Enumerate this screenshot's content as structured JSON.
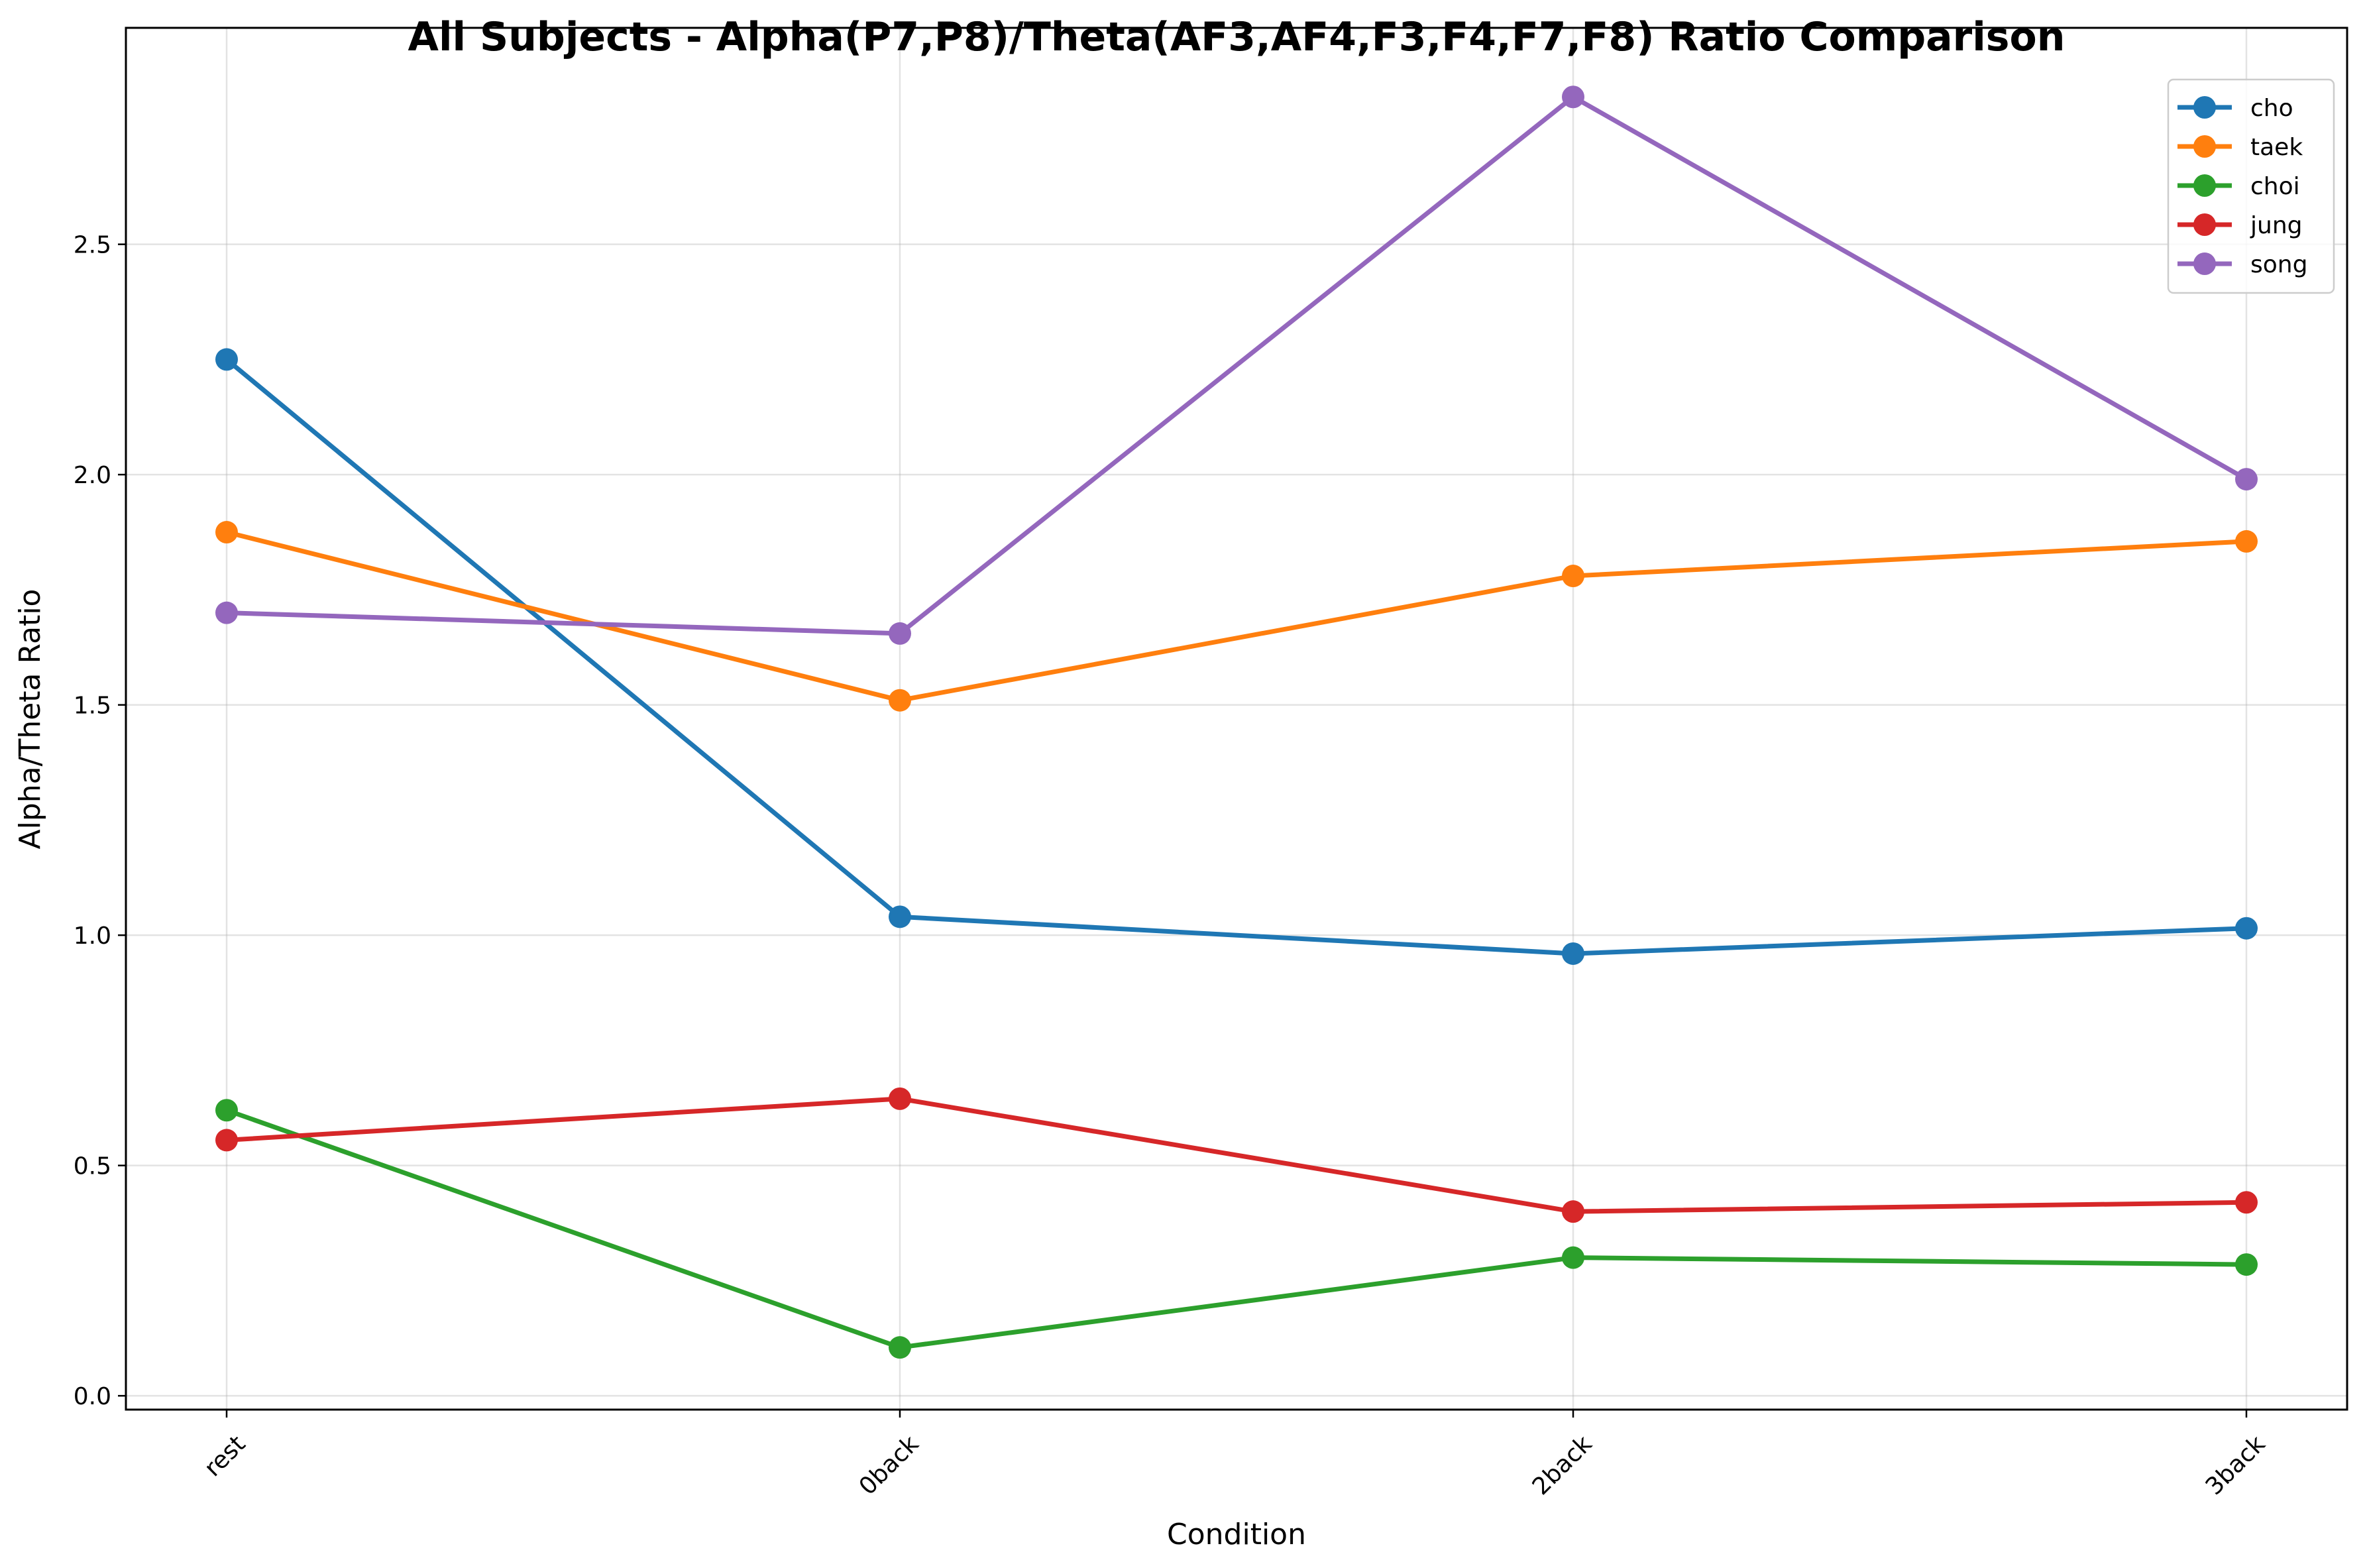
{
  "chart_data": {
    "type": "line",
    "title": "All Subjects - Alpha(P7,P8)/Theta(AF3,AF4,F3,F4,F7,F8) Ratio Comparison",
    "xlabel": "Condition",
    "ylabel": "Alpha/Theta Ratio",
    "categories": [
      "rest",
      "0back",
      "2back",
      "3back"
    ],
    "ylim": [
      -0.03,
      2.97
    ],
    "yticks": [
      0.0,
      0.5,
      1.0,
      1.5,
      2.0,
      2.5
    ],
    "ytick_labels": [
      "0.0",
      "0.5",
      "1.0",
      "1.5",
      "2.0",
      "2.5"
    ],
    "grid": true,
    "legend_position": "upper-right",
    "series": [
      {
        "name": "cho",
        "color": "#1f77b4",
        "values": [
          2.25,
          1.04,
          0.96,
          1.015
        ]
      },
      {
        "name": "taek",
        "color": "#ff7f0e",
        "values": [
          1.875,
          1.51,
          1.78,
          1.855
        ]
      },
      {
        "name": "choi",
        "color": "#2ca02c",
        "values": [
          0.62,
          0.105,
          0.3,
          0.285
        ]
      },
      {
        "name": "jung",
        "color": "#d62728",
        "values": [
          0.555,
          0.645,
          0.4,
          0.42
        ]
      },
      {
        "name": "song",
        "color": "#9467bd",
        "values": [
          1.7,
          1.655,
          2.82,
          1.99
        ]
      }
    ]
  }
}
